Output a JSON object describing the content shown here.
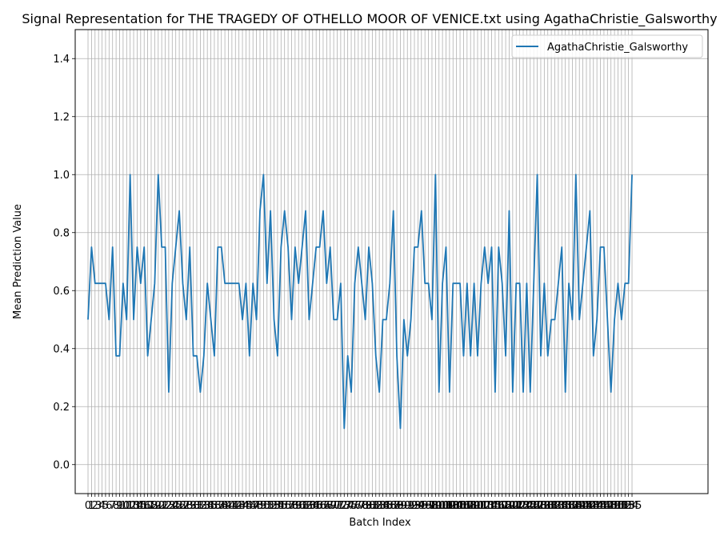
{
  "chart_data": {
    "type": "line",
    "title": "Signal Representation for THE TRAGEDY OF OTHELLO MOOR OF VENICE.txt using AgathaChristie_Galsworthy",
    "xlabel": "Batch Index",
    "ylabel": "Mean Prediction Value",
    "xlim": [
      -3.65,
      176.65
    ],
    "ylim": [
      -0.1,
      1.5
    ],
    "yticks": [
      0.0,
      0.2,
      0.4,
      0.6,
      0.8,
      1.0,
      1.2,
      1.4
    ],
    "ytick_labels": [
      "0.0",
      "0.2",
      "0.4",
      "0.6",
      "0.8",
      "1.0",
      "1.2",
      "1.4"
    ],
    "x_ticks_every": 1,
    "grid": true,
    "legend": "top-right",
    "line_color": "#1f77b4",
    "series": [
      {
        "name": "AgathaChristie_Galsworthy",
        "values": [
          0.5,
          0.75,
          0.625,
          0.625,
          0.625,
          0.625,
          0.5,
          0.75,
          0.375,
          0.375,
          0.625,
          0.5,
          1.0,
          0.5,
          0.75,
          0.625,
          0.75,
          0.375,
          0.5,
          0.625,
          1.0,
          0.75,
          0.75,
          0.25,
          0.625,
          0.75,
          0.875,
          0.625,
          0.5,
          0.75,
          0.375,
          0.375,
          0.25,
          0.375,
          0.625,
          0.5,
          0.375,
          0.75,
          0.75,
          0.625,
          0.625,
          0.625,
          0.625,
          0.625,
          0.5,
          0.625,
          0.375,
          0.625,
          0.5,
          0.875,
          1.0,
          0.625,
          0.875,
          0.5,
          0.375,
          0.75,
          0.875,
          0.75,
          0.5,
          0.75,
          0.625,
          0.75,
          0.875,
          0.5,
          0.625,
          0.75,
          0.75,
          0.875,
          0.625,
          0.75,
          0.5,
          0.5,
          0.625,
          0.125,
          0.375,
          0.25,
          0.625,
          0.75,
          0.625,
          0.5,
          0.75,
          0.625,
          0.375,
          0.25,
          0.5,
          0.5,
          0.625,
          0.875,
          0.375,
          0.125,
          0.5,
          0.375,
          0.5,
          0.75,
          0.75,
          0.875,
          0.625,
          0.625,
          0.5,
          1.0,
          0.25,
          0.625,
          0.75,
          0.25,
          0.625,
          0.625,
          0.625,
          0.375,
          0.625,
          0.375,
          0.625,
          0.375,
          0.625,
          0.75,
          0.625,
          0.75,
          0.25,
          0.75,
          0.625,
          0.375,
          0.875,
          0.25,
          0.625,
          0.625,
          0.25,
          0.625,
          0.25,
          0.625,
          1.0,
          0.375,
          0.625,
          0.375,
          0.5,
          0.5,
          0.625,
          0.75,
          0.25,
          0.625,
          0.5,
          1.0,
          0.5,
          0.625,
          0.75,
          0.875,
          0.375,
          0.5,
          0.75,
          0.75,
          0.5,
          0.25,
          0.5,
          0.625,
          0.5,
          0.625,
          0.625,
          1.0
        ]
      }
    ]
  }
}
